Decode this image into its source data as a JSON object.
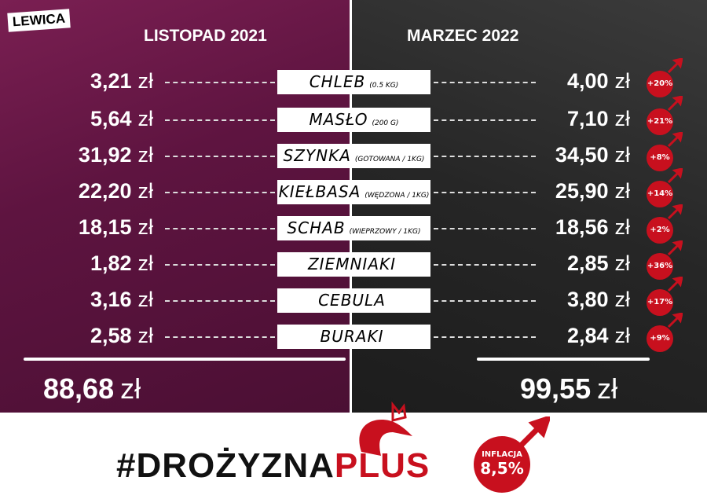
{
  "brand": "LEWICA",
  "left_header": "LISTOPAD 2021",
  "right_header": "MARZEC 2022",
  "currency": "zł",
  "items": [
    {
      "name": "CHLEB",
      "unit": "(0.5 KG)",
      "before": "3,21",
      "after": "4,00",
      "change": "+20%"
    },
    {
      "name": "MASŁO",
      "unit": "(200 G)",
      "before": "5,64",
      "after": "7,10",
      "change": "+21%"
    },
    {
      "name": "SZYNKA",
      "unit": "(GOTOWANA / 1KG)",
      "before": "31,92",
      "after": "34,50",
      "change": "+8%"
    },
    {
      "name": "KIEŁBASA",
      "unit": "(WĘDZONA / 1KG)",
      "before": "22,20",
      "after": "25,90",
      "change": "+14%"
    },
    {
      "name": "SCHAB",
      "unit": "(WIEPRZOWY / 1KG)",
      "before": "18,15",
      "after": "18,56",
      "change": "+2%"
    },
    {
      "name": "ZIEMNIAKI",
      "unit": "",
      "before": "1,82",
      "after": "2,85",
      "change": "+36%"
    },
    {
      "name": "CEBULA",
      "unit": "",
      "before": "3,16",
      "after": "3,80",
      "change": "+17%"
    },
    {
      "name": "BURAKI",
      "unit": "",
      "before": "2,58",
      "after": "2,84",
      "change": "+9%"
    }
  ],
  "total_before": "88,68",
  "total_after": "99,55",
  "hashtag_black": "#DROŻYZNA",
  "hashtag_red": "PLUS",
  "inflation_label": "INFLACJA",
  "inflation_value": "8,5%",
  "colors": {
    "red": "#c8101e",
    "left_bg": "#5e1440",
    "right_bg": "#262626"
  }
}
